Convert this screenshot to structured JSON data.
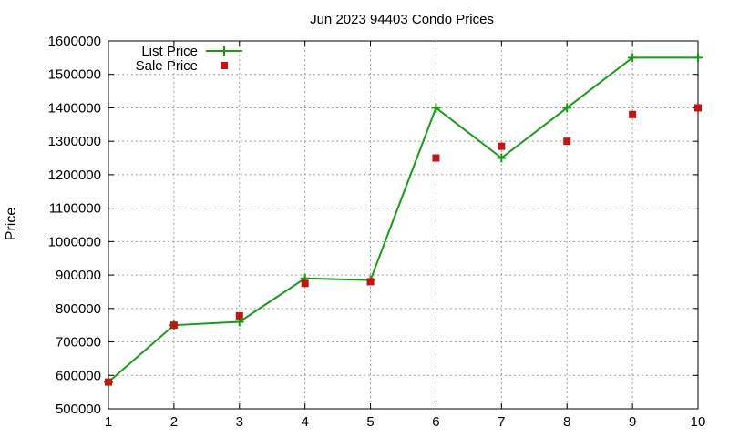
{
  "chart_data": {
    "type": "line",
    "title": "Jun 2023 94403 Condo Prices",
    "xlabel": "",
    "ylabel": "Price",
    "xlim": [
      1,
      10
    ],
    "ylim": [
      500000,
      1600000
    ],
    "x_ticks": [
      1,
      2,
      3,
      4,
      5,
      6,
      7,
      8,
      9,
      10
    ],
    "y_ticks": [
      500000,
      600000,
      700000,
      800000,
      900000,
      1000000,
      1100000,
      1200000,
      1300000,
      1400000,
      1500000,
      1600000
    ],
    "grid": true,
    "legend_position": "top-left",
    "series": [
      {
        "name": "List Price",
        "style": "line-with-plus-markers",
        "color": "#11a011",
        "x": [
          1,
          2,
          3,
          4,
          5,
          6,
          7,
          8,
          9,
          10
        ],
        "values": [
          580000,
          750000,
          760000,
          890000,
          885000,
          1400000,
          1250000,
          1400000,
          1550000,
          1550000
        ]
      },
      {
        "name": "Sale Price",
        "style": "square-points",
        "color": "#cc1111",
        "x": [
          1,
          2,
          3,
          4,
          5,
          6,
          7,
          8,
          9,
          10
        ],
        "values": [
          580000,
          750000,
          778000,
          875000,
          880000,
          1250000,
          1285000,
          1300000,
          1380000,
          1400000
        ]
      }
    ]
  }
}
